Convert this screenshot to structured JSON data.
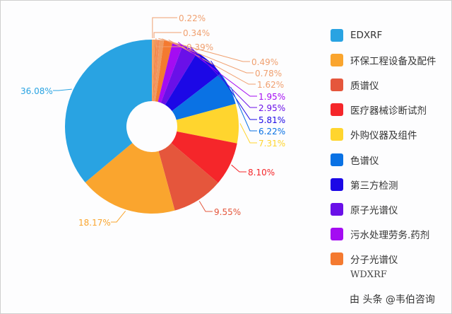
{
  "chart_data": {
    "type": "pie",
    "donut": true,
    "slices": [
      {
        "name": "",
        "value": 0.22,
        "color": "#f7a35c"
      },
      {
        "name": "",
        "value": 0.34,
        "color": "#f39c5a"
      },
      {
        "name": "",
        "value": 0.39,
        "color": "#f08a4b"
      },
      {
        "name": "",
        "value": 0.49,
        "color": "#f48c56"
      },
      {
        "name": "WDXRF",
        "value": 0.78,
        "color": "#ee9a60"
      },
      {
        "name": "分子光谱仪",
        "value": 1.62,
        "color": "#f47a30"
      },
      {
        "name": "污水处理劳务.药剂",
        "value": 1.95,
        "color": "#a40cf2"
      },
      {
        "name": "原子光谱仪",
        "value": 2.95,
        "color": "#6a10e8"
      },
      {
        "name": "第三方检测",
        "value": 5.81,
        "color": "#1c08e6"
      },
      {
        "name": "色谱仪",
        "value": 6.22,
        "color": "#0a72e4"
      },
      {
        "name": "外购仪器及组件",
        "value": 7.31,
        "color": "#ffd52e"
      },
      {
        "name": "医疗器械诊断试剂",
        "value": 8.1,
        "color": "#f5262a"
      },
      {
        "name": "质谱仪",
        "value": 9.55,
        "color": "#e5563c"
      },
      {
        "name": "环保工程设备及配件",
        "value": 18.17,
        "color": "#faa52e"
      },
      {
        "name": "EDXRF",
        "value": 36.08,
        "color": "#29a3e2"
      }
    ],
    "labels": [
      "0.22%",
      "0.34%",
      "0.39%",
      "0.49%",
      "0.78%",
      "1.62%",
      "1.95%",
      "2.95%",
      "5.81%",
      "6.22%",
      "7.31%",
      "8.10%",
      "9.55%",
      "18.17%",
      "36.08%"
    ]
  },
  "legend": [
    {
      "label": "EDXRF",
      "color": "#29a3e2"
    },
    {
      "label": "环保工程设备及配件",
      "color": "#faa52e"
    },
    {
      "label": "质谱仪",
      "color": "#e5563c"
    },
    {
      "label": "医疗器械诊断试剂",
      "color": "#f5262a"
    },
    {
      "label": "外购仪器及组件",
      "color": "#ffd52e"
    },
    {
      "label": "色谱仪",
      "color": "#0a72e4"
    },
    {
      "label": "第三方检测",
      "color": "#1c08e6"
    },
    {
      "label": "原子光谱仪",
      "color": "#6a10e8"
    },
    {
      "label": "污水处理劳务.药剂",
      "color": "#a40cf2"
    },
    {
      "label": "分子光谱仪",
      "color": "#f47a30"
    }
  ],
  "legend_extra": "WDXRF",
  "source": "由 头条 @韦伯咨询"
}
